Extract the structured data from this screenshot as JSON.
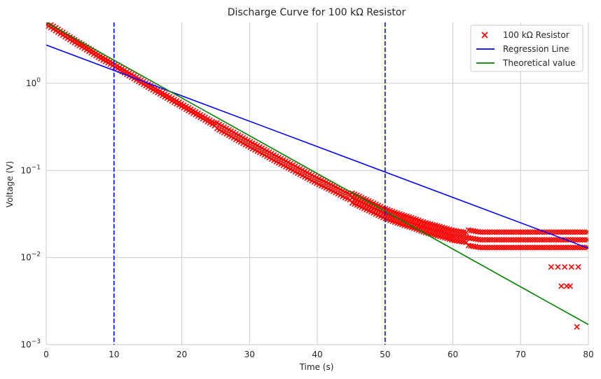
{
  "chart_data": {
    "type": "scatter",
    "title": "Discharge Curve for 100 kΩ Resistor",
    "xlabel": "Time (s)",
    "ylabel": "Voltage (V)",
    "xlim": [
      0,
      80
    ],
    "ylim": [
      0.001,
      5
    ],
    "yscale": "log",
    "grid": true,
    "legend_position": "top-right",
    "x_ticks": [
      0,
      10,
      20,
      30,
      40,
      50,
      60,
      70,
      80
    ],
    "y_ticks": [
      {
        "value": 1,
        "base": "10",
        "exp": "0"
      },
      {
        "value": 0.1,
        "base": "10",
        "exp": "−1"
      },
      {
        "value": 0.01,
        "base": "10",
        "exp": "−2"
      },
      {
        "value": 0.001,
        "base": "10",
        "exp": "−3"
      }
    ],
    "vertical_lines": [
      {
        "x": 10,
        "color": "#0000ff",
        "style": "dashed"
      },
      {
        "x": 50,
        "color": "#0000ff",
        "style": "dashed"
      }
    ],
    "series": [
      {
        "name": "100 kΩ Resistor",
        "kind": "scatter",
        "marker": "x",
        "color": "#ff0000",
        "points": [
          [
            0,
            4.9
          ],
          [
            2,
            3.9
          ],
          [
            4,
            3.1
          ],
          [
            6,
            2.5
          ],
          [
            8,
            2.0
          ],
          [
            10,
            1.62
          ],
          [
            12,
            1.3
          ],
          [
            14,
            1.05
          ],
          [
            16,
            0.85
          ],
          [
            18,
            0.69
          ],
          [
            20,
            0.56
          ],
          [
            22,
            0.455
          ],
          [
            24,
            0.37
          ],
          [
            26,
            0.3
          ],
          [
            28,
            0.245
          ],
          [
            30,
            0.2
          ],
          [
            32,
            0.165
          ],
          [
            34,
            0.135
          ],
          [
            36,
            0.112
          ],
          [
            38,
            0.092
          ],
          [
            40,
            0.076
          ],
          [
            42,
            0.064
          ],
          [
            44,
            0.053
          ],
          [
            46,
            0.045
          ],
          [
            48,
            0.038
          ],
          [
            50,
            0.032
          ],
          [
            52,
            0.028
          ],
          [
            54,
            0.025
          ],
          [
            56,
            0.022
          ],
          [
            58,
            0.02
          ],
          [
            60,
            0.018
          ],
          [
            62,
            0.017
          ],
          [
            64,
            0.016
          ],
          [
            66,
            0.016
          ],
          [
            68,
            0.016
          ],
          [
            70,
            0.016
          ],
          [
            72,
            0.016
          ],
          [
            74,
            0.016
          ],
          [
            76,
            0.016
          ],
          [
            78,
            0.016
          ],
          [
            80,
            0.016
          ],
          [
            74.5,
            0.0078
          ],
          [
            75.5,
            0.0078
          ],
          [
            76.5,
            0.0078
          ],
          [
            77.5,
            0.0078
          ],
          [
            78.5,
            0.0078
          ],
          [
            76,
            0.0047
          ],
          [
            76.8,
            0.0047
          ],
          [
            77.3,
            0.0047
          ],
          [
            78.3,
            0.0016
          ]
        ]
      },
      {
        "name": "Regression Line",
        "kind": "line",
        "color": "#0000ff",
        "points": [
          [
            0,
            2.75
          ],
          [
            80,
            0.0128
          ]
        ]
      },
      {
        "name": "Theoretical value",
        "kind": "line",
        "color": "#008000",
        "points": [
          [
            0,
            5.0
          ],
          [
            80,
            0.0017
          ]
        ]
      }
    ]
  }
}
